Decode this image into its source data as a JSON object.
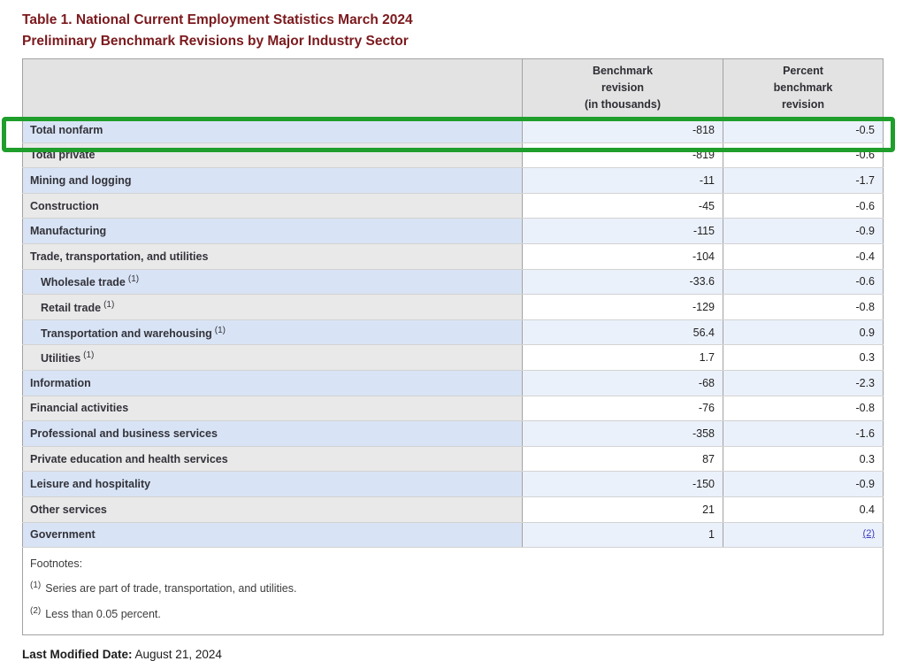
{
  "title": {
    "line1": "Table 1. National Current Employment Statistics March 2024",
    "line2": "Preliminary Benchmark Revisions by Major Industry Sector"
  },
  "colors": {
    "title_maroon": "#7b191d",
    "link_blue": "#3a3abf",
    "highlight_green": "#1f9e2b",
    "header_bg": "#e3e3e3",
    "row_blue_label_bg": "#d8e4f5",
    "row_blue_value_bg": "#ebf1fb",
    "row_gray_label_bg": "#e9e9e9"
  },
  "table": {
    "headers": {
      "industry": "",
      "benchmark": "Benchmark\nrevision\n(in thousands)",
      "percent": "Percent\nbenchmark\nrevision"
    },
    "rows": [
      {
        "label": "Total nonfarm",
        "sup": "",
        "indent": false,
        "benchmark": "-818",
        "percent": "-0.5",
        "highlighted": true
      },
      {
        "label": "Total private",
        "sup": "",
        "indent": false,
        "benchmark": "-819",
        "percent": "-0.6"
      },
      {
        "label": "Mining and logging",
        "sup": "",
        "indent": false,
        "benchmark": "-11",
        "percent": "-1.7"
      },
      {
        "label": "Construction",
        "sup": "",
        "indent": false,
        "benchmark": "-45",
        "percent": "-0.6"
      },
      {
        "label": "Manufacturing",
        "sup": "",
        "indent": false,
        "benchmark": "-115",
        "percent": "-0.9"
      },
      {
        "label": "Trade, transportation, and utilities",
        "sup": "",
        "indent": false,
        "benchmark": "-104",
        "percent": "-0.4"
      },
      {
        "label": "Wholesale trade",
        "sup": "(1)",
        "indent": true,
        "benchmark": "-33.6",
        "percent": "-0.6"
      },
      {
        "label": "Retail trade",
        "sup": "(1)",
        "indent": true,
        "benchmark": "-129",
        "percent": "-0.8"
      },
      {
        "label": "Transportation and warehousing",
        "sup": "(1)",
        "indent": true,
        "benchmark": "56.4",
        "percent": "0.9"
      },
      {
        "label": "Utilities",
        "sup": "(1)",
        "indent": true,
        "benchmark": "1.7",
        "percent": "0.3"
      },
      {
        "label": "Information",
        "sup": "",
        "indent": false,
        "benchmark": "-68",
        "percent": "-2.3"
      },
      {
        "label": "Financial activities",
        "sup": "",
        "indent": false,
        "benchmark": "-76",
        "percent": "-0.8"
      },
      {
        "label": "Professional and business services",
        "sup": "",
        "indent": false,
        "benchmark": "-358",
        "percent": "-1.6"
      },
      {
        "label": "Private education and health services",
        "sup": "",
        "indent": false,
        "benchmark": "87",
        "percent": "0.3"
      },
      {
        "label": "Leisure and hospitality",
        "sup": "",
        "indent": false,
        "benchmark": "-150",
        "percent": "-0.9"
      },
      {
        "label": "Other services",
        "sup": "",
        "indent": false,
        "benchmark": "21",
        "percent": "0.4"
      },
      {
        "label": "Government",
        "sup": "",
        "indent": false,
        "benchmark": "1",
        "percent": "(2)",
        "percent_is_link": true
      }
    ]
  },
  "footnotes": {
    "heading": "Footnotes:",
    "items": [
      {
        "marker": "(1)",
        "text": "Series are part of trade, transportation, and utilities."
      },
      {
        "marker": "(2)",
        "text": "Less than 0.05 percent."
      }
    ]
  },
  "footer": {
    "last_modified_label": "Last Modified Date:",
    "last_modified_value": "August 21, 2024"
  }
}
